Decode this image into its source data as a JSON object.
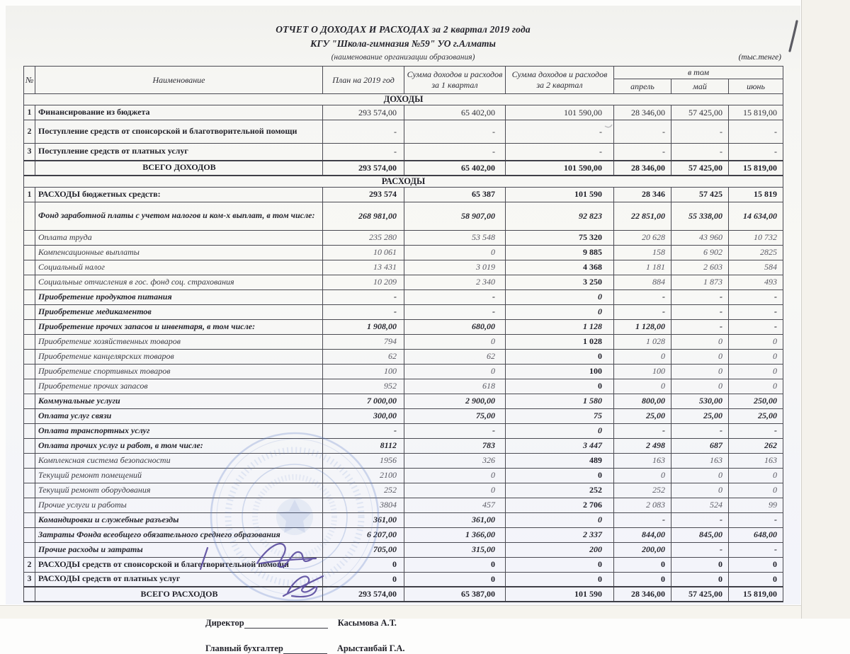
{
  "header": {
    "title_line1": "ОТЧЕТ О ДОХОДАХ И РАСХОДАХ за 2 квартал 2019 года",
    "title_line2": "КГУ \"Школа-гимназия №59\" УО г.Алматы",
    "subtitle": "(наименование организации образования)",
    "units_note": "(тыс.тенге)"
  },
  "table": {
    "columns": {
      "num": "№",
      "name": "Наименование",
      "plan": "План на 2019 год",
      "q1": "Сумма доходов и расходов за 1 квартал",
      "q2": "Сумма доходов и расходов за  2 квартал",
      "group": "в том",
      "months": [
        "апрель",
        "май",
        "июнь"
      ]
    },
    "rows": [
      {
        "style": "section",
        "num": "",
        "name": "ДОХОДЫ",
        "values": []
      },
      {
        "style": "main",
        "num": "1",
        "name": "Финансирование из бюджета",
        "values": [
          "293 574,00",
          "65 402,00",
          "101 590,00",
          "28 346,00",
          "57 425,00",
          "15 819,00"
        ]
      },
      {
        "style": "main",
        "num": "2",
        "name": "Поступление средств от спонсорской и благотворительной помощи",
        "values": [
          "-",
          "-",
          "-",
          "-",
          "-",
          "-"
        ]
      },
      {
        "style": "main",
        "num": "3",
        "name": "Поступление средств от платных услуг",
        "values": [
          "-",
          "-",
          "-",
          "-",
          "-",
          "-"
        ]
      },
      {
        "style": "total",
        "num": "",
        "name": "ВСЕГО ДОХОДОВ",
        "values": [
          "293 574,00",
          "65 402,00",
          "101 590,00",
          "28 346,00",
          "57 425,00",
          "15 819,00"
        ]
      },
      {
        "style": "section",
        "num": "",
        "name": "РАСХОДЫ",
        "values": []
      },
      {
        "style": "mainbold",
        "num": "1",
        "name": "РАСХОДЫ бюджетных средств:",
        "values": [
          "293 574",
          "65 387",
          "101 590",
          "28 346",
          "57 425",
          "15 819"
        ]
      },
      {
        "style": "group",
        "num": "",
        "name": "Фонд заработной платы с учетом налогов и ком-х выплат, в том числе:",
        "values": [
          "268 981,00",
          "58 907,00",
          "92 823",
          "22 851,00",
          "55 338,00",
          "14 634,00"
        ]
      },
      {
        "style": "sub",
        "num": "",
        "name": "Оплата труда",
        "values": [
          "235 280",
          "53 548",
          "75 320",
          "20 628",
          "43 960",
          "10 732"
        ]
      },
      {
        "style": "sub",
        "num": "",
        "name": "Компенсационные выплаты",
        "values": [
          "10 061",
          "0",
          "9 885",
          "158",
          "6 902",
          "2825"
        ]
      },
      {
        "style": "sub",
        "num": "",
        "name": "Социальный налог",
        "values": [
          "13 431",
          "3 019",
          "4 368",
          "1 181",
          "2 603",
          "584"
        ]
      },
      {
        "style": "sub",
        "num": "",
        "name": "Социальные отчисления в гос. фонд соц. страхования",
        "values": [
          "10 209",
          "2 340",
          "3 250",
          "884",
          "1 873",
          "493"
        ]
      },
      {
        "style": "group",
        "num": "",
        "name": "Приобретение продуктов питания",
        "values": [
          "-",
          "-",
          "0",
          "-",
          "-",
          "-"
        ]
      },
      {
        "style": "group",
        "num": "",
        "name": "Приобретение медикаментов",
        "values": [
          "-",
          "-",
          "0",
          "-",
          "-",
          "-"
        ]
      },
      {
        "style": "group",
        "num": "",
        "name": "Приобретение прочих запасов и инвентаря, в том числе:",
        "values": [
          "1 908,00",
          "680,00",
          "1 128",
          "1 128,00",
          "-",
          "-"
        ]
      },
      {
        "style": "sub",
        "num": "",
        "name": "Приобретение хозяйственных товаров",
        "values": [
          "794",
          "0",
          "1 028",
          "1 028",
          "0",
          "0"
        ]
      },
      {
        "style": "sub",
        "num": "",
        "name": "Приобретение канцелярских товаров",
        "values": [
          "62",
          "62",
          "0",
          "0",
          "0",
          "0"
        ]
      },
      {
        "style": "sub",
        "num": "",
        "name": "Приобретение спортивных товаров",
        "values": [
          "100",
          "0",
          "100",
          "100",
          "0",
          "0"
        ]
      },
      {
        "style": "sub",
        "num": "",
        "name": "Приобретение прочих запасов",
        "values": [
          "952",
          "618",
          "0",
          "0",
          "0",
          "0"
        ]
      },
      {
        "style": "group",
        "num": "",
        "name": "Коммунальные услуги",
        "values": [
          "7 000,00",
          "2 900,00",
          "1 580",
          "800,00",
          "530,00",
          "250,00"
        ]
      },
      {
        "style": "group",
        "num": "",
        "name": "Оплата услуг связи",
        "values": [
          "300,00",
          "75,00",
          "75",
          "25,00",
          "25,00",
          "25,00"
        ]
      },
      {
        "style": "group",
        "num": "",
        "name": "Оплата транспортных услуг",
        "values": [
          "-",
          "-",
          "0",
          "-",
          "-",
          "-"
        ]
      },
      {
        "style": "group",
        "num": "",
        "name": "Оплата прочих услуг и работ, в том числе:",
        "values": [
          "8112",
          "783",
          "3 447",
          "2 498",
          "687",
          "262"
        ]
      },
      {
        "style": "sub",
        "num": "",
        "name": "Комплексная система безопасности",
        "values": [
          "1956",
          "326",
          "489",
          "163",
          "163",
          "163"
        ]
      },
      {
        "style": "sub",
        "num": "",
        "name": "Текущий ремонт помещений",
        "values": [
          "2100",
          "0",
          "0",
          "0",
          "0",
          "0"
        ]
      },
      {
        "style": "sub",
        "num": "",
        "name": "Текущий ремонт оборудования",
        "values": [
          "252",
          "0",
          "252",
          "252",
          "0",
          "0"
        ]
      },
      {
        "style": "sub",
        "num": "",
        "name": "Прочие услуги и работы",
        "values": [
          "3804",
          "457",
          "2 706",
          "2 083",
          "524",
          "99"
        ]
      },
      {
        "style": "group",
        "num": "",
        "name": "Командировки и служебные разъезды",
        "values": [
          "361,00",
          "361,00",
          "0",
          "-",
          "-",
          "-"
        ]
      },
      {
        "style": "group",
        "num": "",
        "name": "Затраты Фонда всеобщего обязательного среднего образования",
        "values": [
          "6 207,00",
          "1 366,00",
          "2 337",
          "844,00",
          "845,00",
          "648,00"
        ]
      },
      {
        "style": "group",
        "num": "",
        "name": "Прочие расходы и затраты",
        "values": [
          "705,00",
          "315,00",
          "200",
          "200,00",
          "-",
          "-"
        ]
      },
      {
        "style": "mainbold",
        "num": "2",
        "name": "РАСХОДЫ средств от спонсорской и благотворительной помощи",
        "values": [
          "0",
          "0",
          "0",
          "0",
          "0",
          "0"
        ]
      },
      {
        "style": "mainbold",
        "num": "3",
        "name": "РАСХОДЫ  средств от платных услуг",
        "values": [
          "0",
          "0",
          "0",
          "0",
          "0",
          "0"
        ]
      },
      {
        "style": "total",
        "num": "",
        "name": "ВСЕГО РАСХОДОВ",
        "values": [
          "293 574,00",
          "65 387,00",
          "101 590",
          "28 346,00",
          "57 425,00",
          "15 819,00"
        ]
      }
    ]
  },
  "signatures": [
    {
      "role": "Директор",
      "name": "Касымова А.Т."
    },
    {
      "role": "Главный бухгалтер",
      "name": "Арыстанбай Г.А."
    }
  ],
  "annotations": {
    "handwritten_page_mark": "1"
  }
}
